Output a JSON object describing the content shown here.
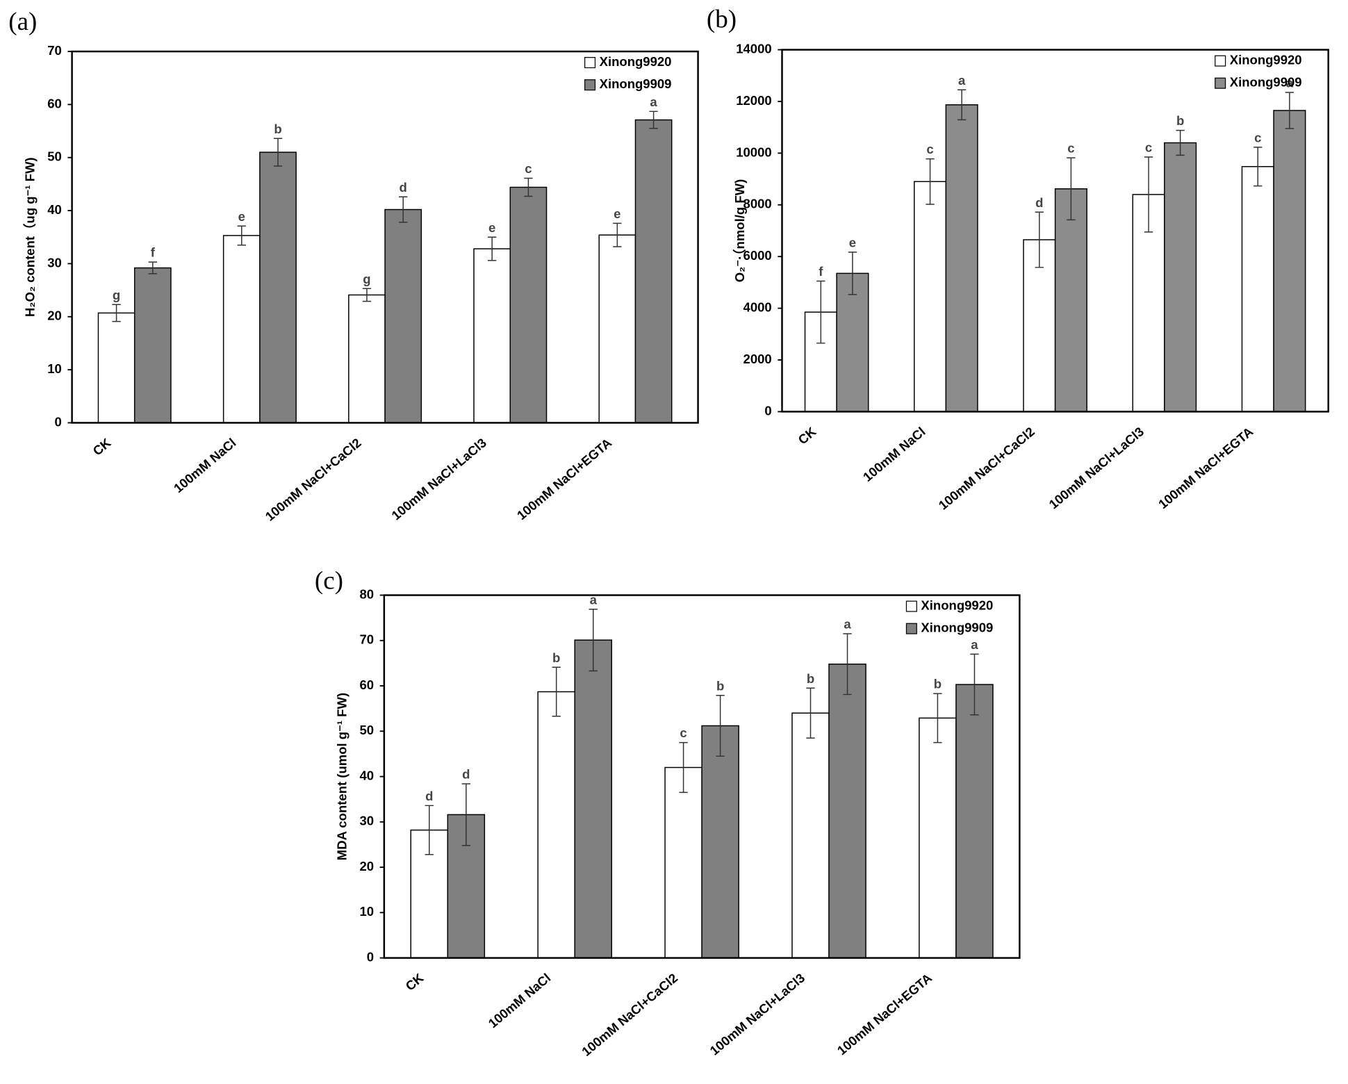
{
  "chart_data": [
    {
      "type": "bar",
      "panel": "(a)",
      "ylabel": "H₂O₂ content（ug g⁻¹ FW)",
      "categories": [
        "CK",
        "100mM NaCl",
        "100mM NaCl+CaCl2",
        "100mM NaCl+LaCl3",
        "100mM NaCl+EGTA"
      ],
      "series": [
        {
          "name": "Xinong9920",
          "color": "#ffffff",
          "values": [
            20.7,
            35.3,
            24.1,
            32.8,
            35.4
          ],
          "errors": [
            1.6,
            1.8,
            1.2,
            2.2,
            2.2
          ],
          "letters": [
            "g",
            "e",
            "g",
            "e",
            "e"
          ]
        },
        {
          "name": "Xinong9909",
          "color": "#808080",
          "values": [
            29.2,
            51.0,
            40.2,
            44.4,
            57.1
          ],
          "errors": [
            1.1,
            2.6,
            2.4,
            1.7,
            1.6
          ],
          "letters": [
            "f",
            "b",
            "d",
            "c",
            "a"
          ]
        }
      ],
      "ylim": [
        0,
        70
      ],
      "yticks": [
        0,
        10,
        20,
        30,
        40,
        50,
        60,
        70
      ],
      "legend": "upper right"
    },
    {
      "type": "bar",
      "panel": "(b)",
      "ylabel": "O₂⁻·（nmol/g FW)",
      "categories": [
        "CK",
        "100mM NaCl",
        "100mM NaCl+CaCl2",
        "100mM NaCl+LaCl3",
        "100mM NaCl+EGTA"
      ],
      "series": [
        {
          "name": "Xinong9920",
          "color": "#ffffff",
          "values": [
            3850,
            8900,
            6650,
            8400,
            9480
          ],
          "errors": [
            1200,
            880,
            1070,
            1450,
            750
          ],
          "letters": [
            "f",
            "c",
            "d",
            "c",
            "c"
          ]
        },
        {
          "name": "Xinong9909",
          "color": "#8c8c8c",
          "values": [
            5350,
            11870,
            8620,
            10400,
            11650
          ],
          "errors": [
            820,
            580,
            1200,
            480,
            700
          ],
          "letters": [
            "e",
            "a",
            "c",
            "b",
            "a"
          ]
        }
      ],
      "ylim": [
        0,
        14000
      ],
      "yticks": [
        0,
        2000,
        4000,
        6000,
        8000,
        10000,
        12000,
        14000
      ],
      "legend": "upper right"
    },
    {
      "type": "bar",
      "panel": "(c)",
      "ylabel": "MDA content (umol g⁻¹ FW)",
      "categories": [
        "CK",
        "100mM NaCl",
        "100mM NaCl+CaCl2",
        "100mM NaCl+LaCl3",
        "100mM NaCl+EGTA"
      ],
      "series": [
        {
          "name": "Xinong9920",
          "color": "#ffffff",
          "values": [
            28.2,
            58.7,
            42.0,
            54.0,
            52.9
          ],
          "errors": [
            5.4,
            5.4,
            5.5,
            5.5,
            5.4
          ],
          "letters": [
            "d",
            "b",
            "c",
            "b",
            "b"
          ]
        },
        {
          "name": "Xinong9909",
          "color": "#808080",
          "values": [
            31.6,
            70.1,
            51.2,
            64.8,
            60.3
          ],
          "errors": [
            6.8,
            6.8,
            6.7,
            6.7,
            6.7
          ],
          "letters": [
            "d",
            "a",
            "b",
            "a",
            "a"
          ]
        }
      ],
      "ylim": [
        0,
        80
      ],
      "yticks": [
        0,
        10,
        20,
        30,
        40,
        50,
        60,
        70,
        80
      ],
      "legend": "upper right"
    }
  ]
}
